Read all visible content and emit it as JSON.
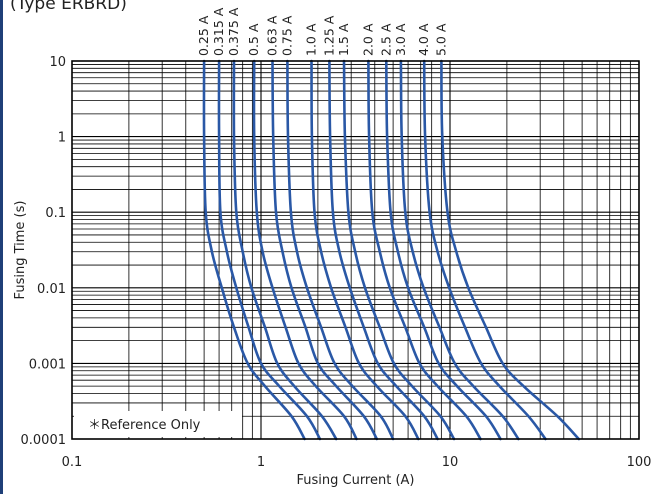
{
  "header": {
    "type_label": "(Type ERBRD)"
  },
  "chart_data": {
    "type": "line",
    "title": "",
    "xlabel": "Fusing Current (A)",
    "ylabel": "Fusing Time  (s)",
    "x_scale": "log",
    "y_scale": "log",
    "xlim": [
      0.1,
      100
    ],
    "ylim": [
      0.0001,
      10
    ],
    "x_ticks": [
      "0.1",
      "1",
      "10",
      "100"
    ],
    "y_ticks": [
      "0.0001",
      "0.001",
      "0.01",
      "0.1",
      "1",
      "10"
    ],
    "grid": true,
    "annotation": "＊Reference Only",
    "line_color": "#2a58a6",
    "series": [
      {
        "name": "0.25 A",
        "points": [
          [
            0.5,
            10
          ],
          [
            0.5,
            1
          ],
          [
            0.51,
            0.1
          ],
          [
            0.55,
            0.03
          ],
          [
            0.62,
            0.01
          ],
          [
            0.72,
            0.003
          ],
          [
            0.85,
            0.001
          ],
          [
            1.05,
            0.0005
          ],
          [
            1.45,
            0.0002
          ],
          [
            1.7,
            0.0001
          ]
        ]
      },
      {
        "name": "0.315 A",
        "points": [
          [
            0.6,
            10
          ],
          [
            0.6,
            1
          ],
          [
            0.61,
            0.1
          ],
          [
            0.66,
            0.03
          ],
          [
            0.74,
            0.01
          ],
          [
            0.86,
            0.003
          ],
          [
            1.0,
            0.001
          ],
          [
            1.25,
            0.0005
          ],
          [
            1.75,
            0.0002
          ],
          [
            2.05,
            0.0001
          ]
        ]
      },
      {
        "name": "0.375 A",
        "points": [
          [
            0.72,
            10
          ],
          [
            0.72,
            1
          ],
          [
            0.74,
            0.1
          ],
          [
            0.8,
            0.03
          ],
          [
            0.89,
            0.01
          ],
          [
            1.05,
            0.003
          ],
          [
            1.22,
            0.001
          ],
          [
            1.5,
            0.0005
          ],
          [
            2.1,
            0.0002
          ],
          [
            2.5,
            0.0001
          ]
        ]
      },
      {
        "name": "0.5 A",
        "points": [
          [
            0.92,
            10
          ],
          [
            0.92,
            1
          ],
          [
            0.95,
            0.1
          ],
          [
            1.02,
            0.03
          ],
          [
            1.15,
            0.01
          ],
          [
            1.35,
            0.003
          ],
          [
            1.58,
            0.001
          ],
          [
            1.95,
            0.0005
          ],
          [
            2.75,
            0.0002
          ],
          [
            3.2,
            0.0001
          ]
        ]
      },
      {
        "name": "0.63 A",
        "points": [
          [
            1.15,
            10
          ],
          [
            1.16,
            1
          ],
          [
            1.2,
            0.1
          ],
          [
            1.3,
            0.03
          ],
          [
            1.45,
            0.01
          ],
          [
            1.72,
            0.003
          ],
          [
            2.0,
            0.001
          ],
          [
            2.5,
            0.0005
          ],
          [
            3.5,
            0.0002
          ],
          [
            4.1,
            0.0001
          ]
        ]
      },
      {
        "name": "0.75 A",
        "points": [
          [
            1.38,
            10
          ],
          [
            1.39,
            1
          ],
          [
            1.44,
            0.1
          ],
          [
            1.55,
            0.03
          ],
          [
            1.75,
            0.01
          ],
          [
            2.08,
            0.003
          ],
          [
            2.45,
            0.001
          ],
          [
            3.05,
            0.0005
          ],
          [
            4.3,
            0.0002
          ],
          [
            5.0,
            0.0001
          ]
        ]
      },
      {
        "name": "1.0 A",
        "points": [
          [
            1.85,
            10
          ],
          [
            1.86,
            1
          ],
          [
            1.92,
            0.1
          ],
          [
            2.08,
            0.03
          ],
          [
            2.35,
            0.01
          ],
          [
            2.8,
            0.003
          ],
          [
            3.3,
            0.001
          ],
          [
            4.1,
            0.0005
          ],
          [
            5.8,
            0.0002
          ],
          [
            6.8,
            0.0001
          ]
        ]
      },
      {
        "name": "1.25 A",
        "points": [
          [
            2.3,
            10
          ],
          [
            2.32,
            1
          ],
          [
            2.4,
            0.1
          ],
          [
            2.6,
            0.03
          ],
          [
            2.95,
            0.01
          ],
          [
            3.5,
            0.003
          ],
          [
            4.15,
            0.001
          ],
          [
            5.2,
            0.0005
          ],
          [
            7.3,
            0.0002
          ],
          [
            8.6,
            0.0001
          ]
        ]
      },
      {
        "name": "1.5 A",
        "points": [
          [
            2.75,
            10
          ],
          [
            2.78,
            1
          ],
          [
            2.9,
            0.1
          ],
          [
            3.15,
            0.03
          ],
          [
            3.55,
            0.01
          ],
          [
            4.25,
            0.003
          ],
          [
            5.05,
            0.001
          ],
          [
            6.3,
            0.0005
          ],
          [
            8.9,
            0.0002
          ],
          [
            10.5,
            0.0001
          ]
        ]
      },
      {
        "name": "2.0 A",
        "points": [
          [
            3.7,
            10
          ],
          [
            3.73,
            1
          ],
          [
            3.88,
            0.1
          ],
          [
            4.25,
            0.03
          ],
          [
            4.8,
            0.01
          ],
          [
            5.8,
            0.003
          ],
          [
            6.9,
            0.001
          ],
          [
            8.6,
            0.0005
          ],
          [
            12.2,
            0.0002
          ],
          [
            14.5,
            0.0001
          ]
        ]
      },
      {
        "name": "2.5 A",
        "points": [
          [
            4.6,
            10
          ],
          [
            4.65,
            1
          ],
          [
            4.85,
            0.1
          ],
          [
            5.3,
            0.03
          ],
          [
            6.0,
            0.01
          ],
          [
            7.3,
            0.003
          ],
          [
            8.7,
            0.001
          ],
          [
            10.9,
            0.0005
          ],
          [
            15.5,
            0.0002
          ],
          [
            18.5,
            0.0001
          ]
        ]
      },
      {
        "name": "3.0 A",
        "points": [
          [
            5.5,
            10
          ],
          [
            5.55,
            1
          ],
          [
            5.8,
            0.1
          ],
          [
            6.35,
            0.03
          ],
          [
            7.25,
            0.01
          ],
          [
            8.8,
            0.003
          ],
          [
            10.6,
            0.001
          ],
          [
            13.3,
            0.0005
          ],
          [
            19.0,
            0.0002
          ],
          [
            23.0,
            0.0001
          ]
        ]
      },
      {
        "name": "4.0 A",
        "points": [
          [
            7.3,
            10
          ],
          [
            7.38,
            1
          ],
          [
            7.8,
            0.1
          ],
          [
            8.6,
            0.03
          ],
          [
            9.9,
            0.01
          ],
          [
            12.0,
            0.003
          ],
          [
            14.6,
            0.001
          ],
          [
            18.3,
            0.0005
          ],
          [
            26.0,
            0.0002
          ],
          [
            32.0,
            0.0001
          ]
        ]
      },
      {
        "name": "5.0 A",
        "points": [
          [
            9.0,
            10
          ],
          [
            9.1,
            1
          ],
          [
            9.7,
            0.1
          ],
          [
            10.8,
            0.03
          ],
          [
            12.5,
            0.01
          ],
          [
            15.5,
            0.003
          ],
          [
            19.0,
            0.001
          ],
          [
            24.5,
            0.0005
          ],
          [
            37.0,
            0.0002
          ],
          [
            48.0,
            0.0001
          ]
        ]
      }
    ]
  }
}
